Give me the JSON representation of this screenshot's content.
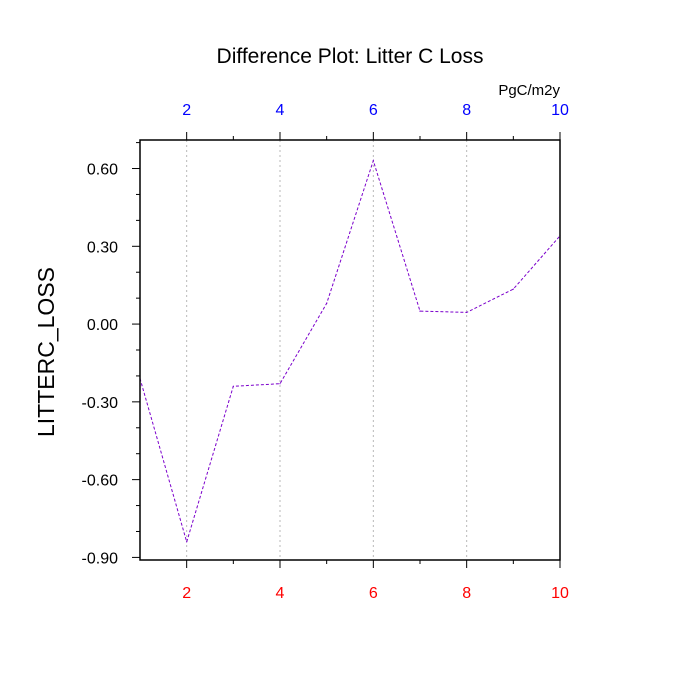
{
  "chart_data": {
    "type": "line",
    "title": "Difference Plot: Litter C Loss",
    "ylabel": "LITTERC_LOSS",
    "units_label": "PgC/m2y",
    "x": [
      1,
      2,
      3,
      4,
      5,
      6,
      7,
      8,
      9,
      10
    ],
    "series": [
      {
        "values": [
          -0.21,
          -0.84,
          -0.24,
          -0.23,
          0.08,
          0.63,
          0.05,
          0.045,
          0.135,
          0.34
        ],
        "color": "#7b00cc"
      }
    ],
    "xlim": [
      1,
      10
    ],
    "ylim": [
      -0.91,
      0.71
    ],
    "xticks": [
      2,
      4,
      6,
      8,
      10
    ],
    "xtick_labels": [
      "2",
      "4",
      "6",
      "8",
      "10"
    ],
    "xticks_minor": [
      3,
      5,
      7,
      9
    ],
    "yticks": [
      0.6,
      0.3,
      0.0,
      -0.3,
      -0.6,
      -0.9
    ],
    "ytick_labels": [
      "0.60",
      "0.30",
      "0.00",
      "-0.30",
      "-0.60",
      "-0.90"
    ],
    "bottom_tick_color": "#ff0000",
    "top_tick_color": "#0000ff",
    "grid": "vertical dotted at major x ticks",
    "line_style": "dashed"
  }
}
